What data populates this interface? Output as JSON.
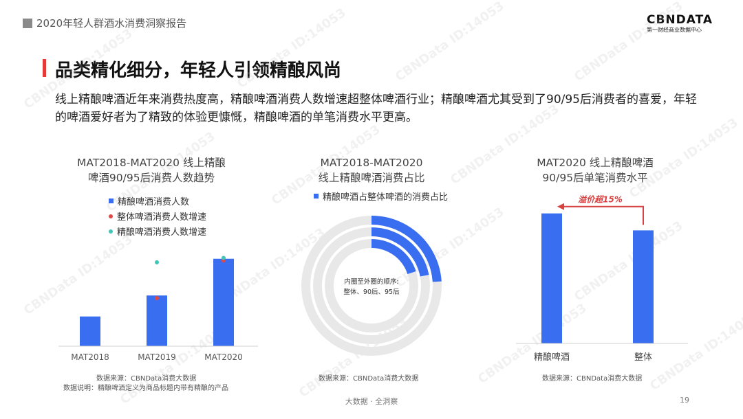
{
  "header": {
    "title": "2020年轻人群酒水消费洞察报告",
    "logo_main": "CBNDATA",
    "logo_sub": "第一财经商业数据中心"
  },
  "main_title": "品类精化细分，年轻人引领精酿风尚",
  "description": "线上精酿啤酒近年来消费热度高，精酿啤酒消费人数增速超整体啤酒行业；精酿啤酒尤其受到了90/95后消费者的喜爱，年轻的啤酒爱好者为了精致的体验更慷慨，精酿啤酒的单笔消费水平更高。",
  "watermark": "CBNData ID:14053",
  "colors": {
    "blue": "#3a6ef0",
    "red_dot": "#e04848",
    "teal_dot": "#3fc4b8",
    "ring_bg": "#e8e8e8",
    "annotation_red": "#d94040"
  },
  "chart_data": [
    {
      "type": "bar",
      "title_line1": "MAT2018-MAT2020 线上精酿",
      "title_line2": "啤酒90/95后消费人数趋势",
      "categories": [
        "MAT2018",
        "MAT2019",
        "MAT2020"
      ],
      "series": [
        {
          "name": "精酿啤酒消费人数",
          "kind": "bar",
          "values": [
            0.34,
            0.58,
            1.0
          ]
        },
        {
          "name": "整体啤酒消费人数增速",
          "kind": "dot",
          "values": [
            null,
            0.55,
            0.98
          ]
        },
        {
          "name": "精酿啤酒消费人数增速",
          "kind": "dot",
          "values": [
            null,
            0.96,
            1.01
          ]
        }
      ],
      "ylim": [
        0,
        1.1
      ],
      "grid": false,
      "legend": "top",
      "note_source": "数据来源：CBNData消费大数据",
      "note_definition": "数据说明：精酿啤酒定义为商品标题内带有精酿的产品"
    },
    {
      "type": "pie",
      "subtype": "concentric-rings",
      "title_line1": "MAT2018-MAT2020",
      "title_line2": "线上精酿啤酒消费占比",
      "legend_label": "精酿啤酒占整体啤酒的消费占比",
      "center_text_line1": "内圈至外圈的顺序:",
      "center_text_line2": "整体、90后、95后",
      "rings": [
        {
          "name": "整体",
          "share": 0.2
        },
        {
          "name": "90后",
          "share": 0.22
        },
        {
          "name": "95后",
          "share": 0.24
        }
      ],
      "note_source": "数据来源：CBNData消费大数据"
    },
    {
      "type": "bar",
      "title_line1": "MAT2020 线上精酿啤酒",
      "title_line2": "90/95后单笔消费水平",
      "categories": [
        "精酿啤酒",
        "整体"
      ],
      "values": [
        1.15,
        1.0
      ],
      "ylim": [
        0,
        1.3
      ],
      "annotation": "溢价超15%",
      "note_source": "数据来源：CBNData消费大数据"
    }
  ],
  "footer": {
    "center": "大数据 · 全洞察",
    "page_number": "19"
  }
}
